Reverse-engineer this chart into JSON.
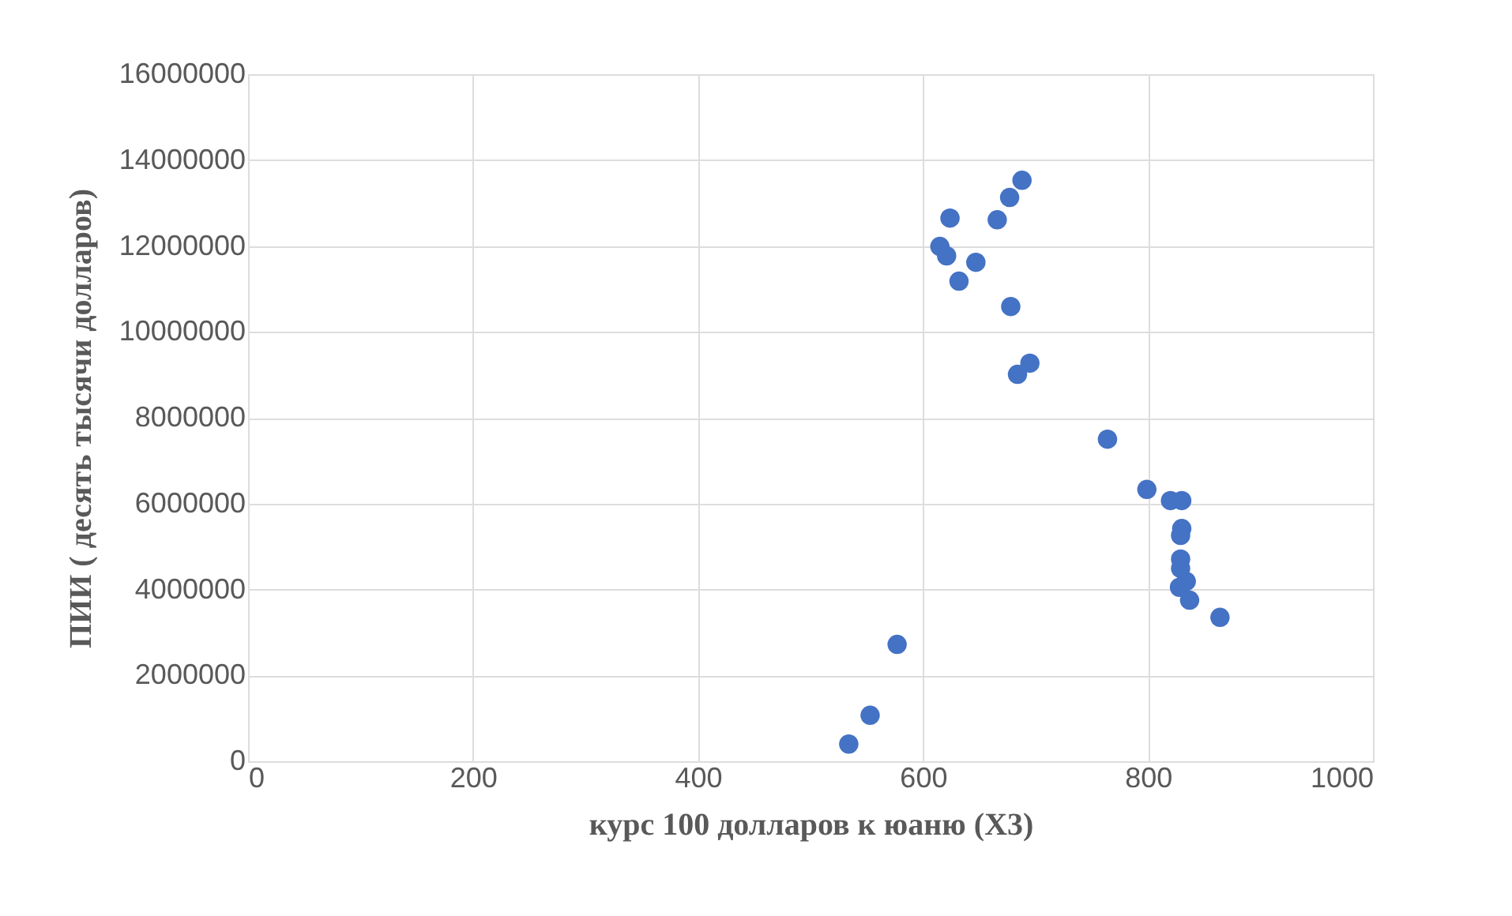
{
  "chart_data": {
    "type": "scatter",
    "xlabel": "курс 100 долларов к юаню (X3)",
    "ylabel": "ПИИ ( десять тысячи долларов)",
    "x": [
      534,
      553,
      577,
      688,
      677,
      666,
      624,
      615,
      621,
      647,
      632,
      678,
      695,
      684,
      764,
      799,
      820,
      830,
      830,
      829,
      829,
      829,
      834,
      828,
      837,
      864
    ],
    "series": [
      {
        "color": "#4472c4",
        "values": [
          400000,
          1070000,
          2720000,
          13530000,
          13130000,
          12610000,
          12650000,
          11990000,
          11770000,
          11620000,
          11180000,
          10590000,
          9270000,
          9010000,
          7500000,
          6330000,
          6070000,
          6070000,
          5420000,
          5260000,
          4710000,
          4490000,
          4190000,
          4050000,
          3750000,
          3350000
        ]
      }
    ],
    "xlim": [
      0,
      1000
    ],
    "xticks": [
      0,
      200,
      400,
      600,
      800,
      1000
    ],
    "ylim": [
      0,
      16000000
    ],
    "yticks": [
      0,
      2000000,
      4000000,
      6000000,
      8000000,
      10000000,
      12000000,
      14000000,
      16000000
    ],
    "grid": true,
    "marker": "circle",
    "legend": false
  }
}
